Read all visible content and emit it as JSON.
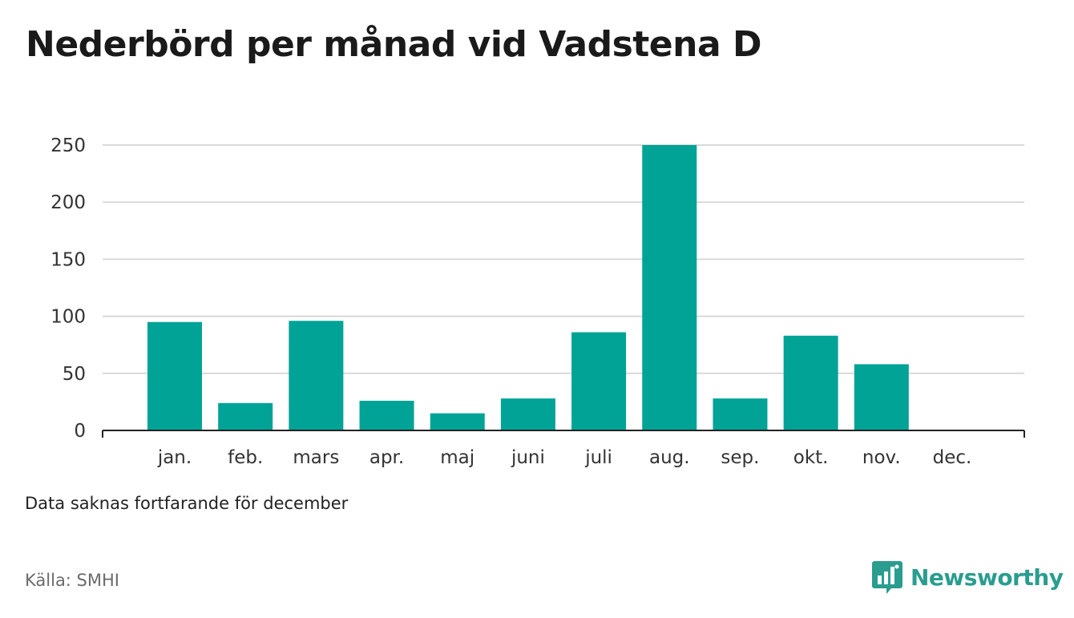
{
  "title": "Nederbörd per månad vid Vadstena D",
  "note": "Data saknas fortfarande för december",
  "source": "Källa: SMHI",
  "brand": {
    "name": "Newsworthy",
    "icon": "newsworthy-logo-icon",
    "color": "#2a9d8f"
  },
  "colors": {
    "bar": "#00a396",
    "grid": "#d9d9d9",
    "axis": "#222222"
  },
  "chart_data": {
    "type": "bar",
    "categories": [
      "jan.",
      "feb.",
      "mars",
      "apr.",
      "maj",
      "juni",
      "juli",
      "aug.",
      "sep.",
      "okt.",
      "nov.",
      "dec."
    ],
    "values": [
      95,
      24,
      96,
      26,
      15,
      28,
      86,
      250,
      28,
      83,
      58,
      null
    ],
    "yticks": [
      0,
      50,
      100,
      150,
      200,
      250
    ],
    "ylim": [
      0,
      250
    ],
    "grid": true,
    "legend": "none",
    "xlabel": "",
    "ylabel": ""
  }
}
